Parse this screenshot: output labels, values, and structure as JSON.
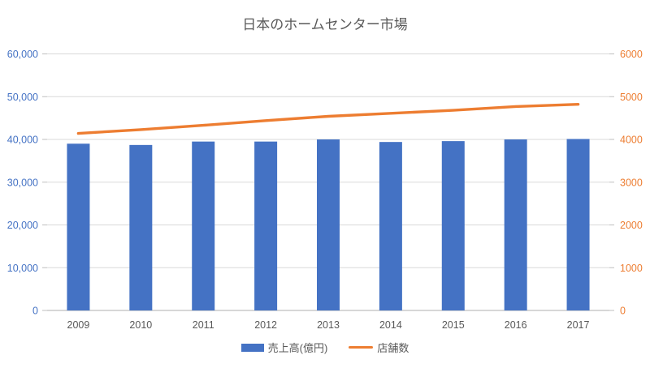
{
  "chart_data": {
    "type": "combo",
    "title": "日本のホームセンター市場",
    "categories": [
      "2009",
      "2010",
      "2011",
      "2012",
      "2013",
      "2014",
      "2015",
      "2016",
      "2017"
    ],
    "series": [
      {
        "name": "売上高(億円)",
        "type": "bar",
        "axis": "left",
        "color": "#4472C4",
        "values": [
          39000,
          38700,
          39500,
          39500,
          40000,
          39400,
          39600,
          40000,
          40100
        ]
      },
      {
        "name": "店舗数",
        "type": "line",
        "axis": "right",
        "color": "#ED7D31",
        "values": [
          4140,
          4230,
          4330,
          4440,
          4540,
          4610,
          4680,
          4770,
          4820
        ]
      }
    ],
    "left_axis": {
      "min": 0,
      "max": 60000,
      "step": 10000,
      "tick_labels": [
        "0",
        "10,000",
        "20,000",
        "30,000",
        "40,000",
        "50,000",
        "60,000"
      ],
      "label_color": "#4472C4"
    },
    "right_axis": {
      "min": 0,
      "max": 6000,
      "step": 1000,
      "tick_labels": [
        "0",
        "1000",
        "2000",
        "3000",
        "4000",
        "5000",
        "6000"
      ],
      "label_color": "#ED7D31"
    },
    "x_axis": {
      "label_color": "#595959"
    },
    "legend": {
      "position": "bottom",
      "entries": [
        "売上高(億円)",
        "店舗数"
      ]
    },
    "grid": true,
    "colors": {
      "title_text": "#595959",
      "gridline": "#D9D9D9",
      "axis_line": "#BFBFBF",
      "background": "#FFFFFF"
    }
  }
}
